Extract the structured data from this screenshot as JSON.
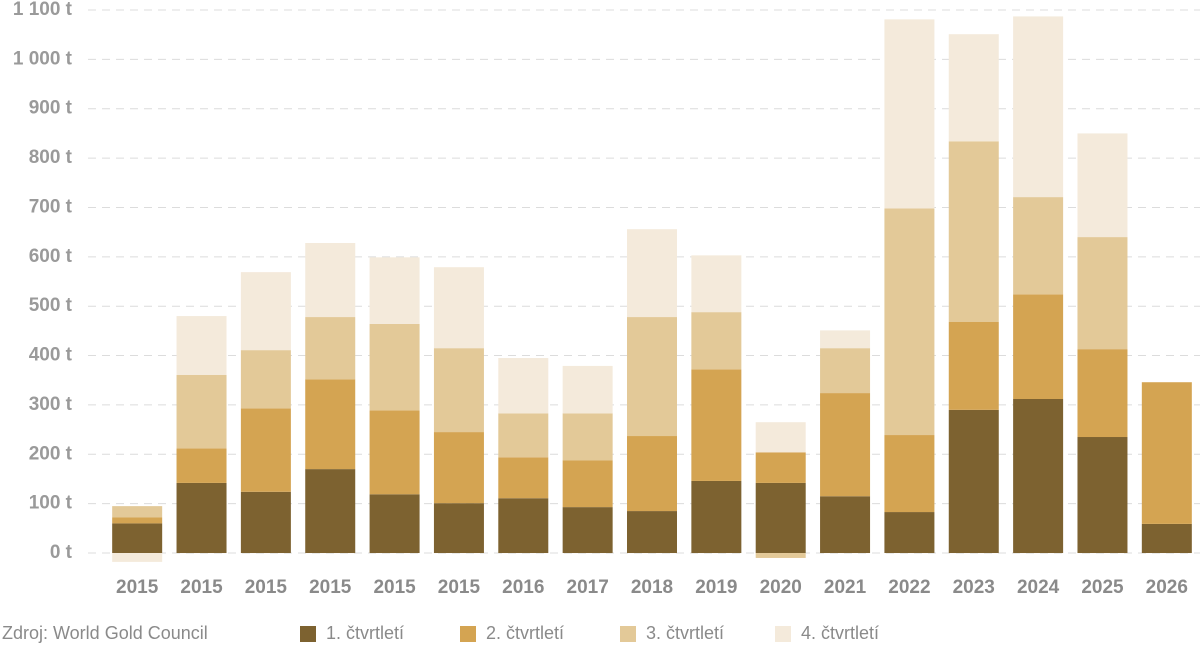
{
  "chart_data": {
    "type": "stacked_bar",
    "source": "Zdroj: World Gold Council",
    "categories": [
      "2015",
      "2015",
      "2015",
      "2015",
      "2015",
      "2015",
      "2016",
      "2017",
      "2018",
      "2019",
      "2020",
      "2021",
      "2022",
      "2023",
      "2024",
      "2025",
      "2026"
    ],
    "series": [
      {
        "name": "1. čtvrtletí",
        "color": "#7d6230",
        "values": [
          60,
          142,
          124,
          170,
          119,
          101,
          111,
          93,
          85,
          146,
          142,
          115,
          83,
          290,
          312,
          235,
          59
        ]
      },
      {
        "name": "2. čtvrtletí",
        "color": "#d4a452",
        "values": [
          12,
          70,
          169,
          182,
          170,
          144,
          83,
          95,
          152,
          226,
          62,
          209,
          156,
          178,
          212,
          178,
          287
        ]
      },
      {
        "name": "3. čtvrtletí",
        "color": "#e3c998",
        "values": [
          23,
          149,
          118,
          126,
          175,
          170,
          89,
          95,
          241,
          116,
          -10,
          91,
          459,
          366,
          197,
          227,
          null
        ]
      },
      {
        "name": "4. čtvrtletí",
        "color": "#f4eadb",
        "values": [
          -18,
          119,
          158,
          150,
          135,
          164,
          112,
          96,
          178,
          115,
          61,
          36,
          383,
          217,
          366,
          210,
          null
        ]
      }
    ],
    "ylim": [
      -20,
      1110
    ],
    "yticks": [
      {
        "value": 0,
        "label": "0 t"
      },
      {
        "value": 100,
        "label": "100 t"
      },
      {
        "value": 200,
        "label": "200 t"
      },
      {
        "value": 300,
        "label": "300 t"
      },
      {
        "value": 400,
        "label": "400 t"
      },
      {
        "value": 500,
        "label": "500 t"
      },
      {
        "value": 600,
        "label": "600 t"
      },
      {
        "value": 700,
        "label": "700 t"
      },
      {
        "value": 800,
        "label": "800 t"
      },
      {
        "value": 900,
        "label": "900 t"
      },
      {
        "value": 1000,
        "label": "1 000 t"
      },
      {
        "value": 1100,
        "label": "1 100 t"
      }
    ],
    "grid": true
  }
}
